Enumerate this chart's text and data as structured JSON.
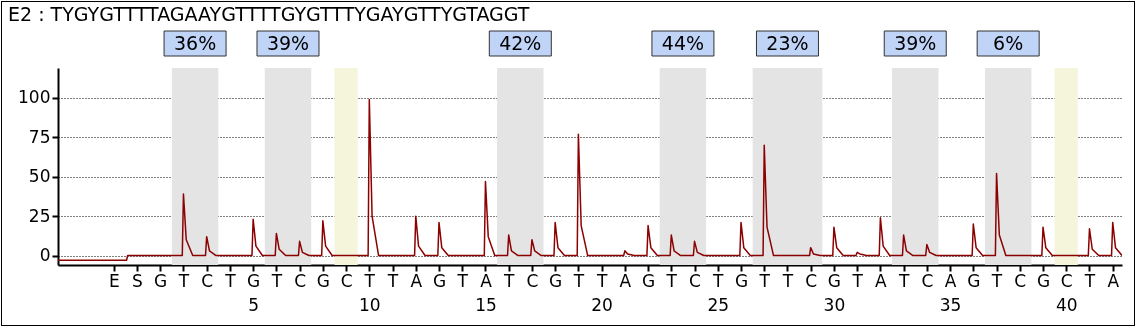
{
  "chart_data": {
    "type": "line",
    "title": "E2 : TYGYGTTTTAGAAYGTTTTGYGTTTYGAYGTTYGTAGGT",
    "series": [
      {
        "color": "#8b0000",
        "x": [
          -3.4,
          -0.45,
          -0.4,
          1.95,
          2,
          2.12,
          2.4,
          2.95,
          3,
          3.12,
          3.4,
          4.95,
          5,
          5.12,
          5.4,
          5.95,
          6,
          6.12,
          6.4,
          6.95,
          7,
          7.12,
          7.4,
          7.95,
          8,
          8.12,
          8.4,
          9.95,
          10,
          10.12,
          10.4,
          11.95,
          12,
          12.12,
          12.4,
          12.95,
          13,
          13.12,
          13.4,
          14.95,
          15,
          15.12,
          15.4,
          15.95,
          16,
          16.12,
          16.4,
          16.95,
          17,
          17.12,
          17.4,
          17.95,
          18,
          18.12,
          18.4,
          18.95,
          19,
          19.12,
          19.4,
          20.95,
          21,
          21.12,
          21.4,
          21.95,
          22,
          22.12,
          22.4,
          22.95,
          23,
          23.12,
          23.4,
          23.95,
          24,
          24.12,
          24.4,
          25.95,
          26,
          26.12,
          26.4,
          26.95,
          27,
          27.12,
          27.4,
          28.95,
          29,
          29.12,
          29.4,
          29.95,
          30,
          30.12,
          30.4,
          30.95,
          31,
          31.12,
          31.4,
          31.95,
          32,
          32.12,
          32.4,
          32.95,
          33,
          33.12,
          33.4,
          33.95,
          34,
          34.12,
          34.4,
          35.95,
          36,
          36.12,
          36.4,
          36.95,
          37,
          37.12,
          37.4,
          38.95,
          39,
          39.12,
          39.4,
          40.95,
          41,
          41.12,
          41.4,
          41.95,
          42,
          42.12,
          42.4
        ],
        "values": [
          -3,
          -3,
          0,
          0,
          39,
          10,
          0,
          0,
          12,
          3,
          0,
          0,
          23,
          6,
          0,
          0,
          14,
          4,
          0,
          0,
          9,
          2,
          0,
          0,
          22,
          6,
          0,
          0,
          99,
          25,
          0,
          0,
          25,
          6,
          0,
          0,
          21,
          5,
          0,
          0,
          47,
          12,
          0,
          0,
          13,
          3,
          0,
          0,
          10,
          3,
          0,
          0,
          21,
          5,
          0,
          0,
          77,
          19,
          0,
          0,
          3,
          1,
          0,
          0,
          19,
          5,
          0,
          0,
          13,
          3,
          0,
          0,
          9,
          2,
          0,
          0,
          21,
          5,
          0,
          0,
          70,
          18,
          0,
          0,
          5,
          1,
          0,
          0,
          18,
          5,
          0,
          0,
          2,
          1,
          0,
          0,
          24,
          6,
          0,
          0,
          13,
          3,
          0,
          0,
          7,
          2,
          0,
          0,
          20,
          5,
          0,
          0,
          52,
          13,
          0,
          0,
          18,
          5,
          0,
          0,
          17,
          4,
          0,
          0,
          21,
          5,
          0
        ]
      }
    ],
    "xlim": [
      -3.4,
      42.4
    ],
    "xticks": [
      5,
      10,
      15,
      20,
      25,
      30,
      35,
      40
    ],
    "annotations": [
      "E",
      "S",
      "G",
      "T",
      "C",
      "T",
      "G",
      "T",
      "C",
      "G",
      "C",
      "T",
      "T",
      "A",
      "G",
      "T",
      "A",
      "T",
      "C",
      "G",
      "T",
      "T",
      "A",
      "G",
      "T",
      "C",
      "T",
      "G",
      "T",
      "T",
      "C",
      "G",
      "T",
      "A",
      "T",
      "C",
      "A",
      "G",
      "T",
      "C",
      "G",
      "C",
      "T",
      "A"
    ],
    "ylim": [
      -6,
      119
    ],
    "yticks": [
      0,
      25,
      50,
      75,
      100
    ],
    "grid": "y",
    "bands": [
      {
        "axis": "x",
        "from": 1.5,
        "to": 3.5,
        "label": "36%",
        "color": "#e4e4e4"
      },
      {
        "axis": "x",
        "from": 5.5,
        "to": 7.5,
        "label": "39%",
        "color": "#e4e4e4"
      },
      {
        "axis": "x",
        "from": 8.5,
        "to": 9.5,
        "color": "#f5f5dc"
      },
      {
        "axis": "x",
        "from": 15.5,
        "to": 17.5,
        "label": "42%",
        "color": "#e4e4e4"
      },
      {
        "axis": "x",
        "from": 22.5,
        "to": 24.5,
        "label": "44%",
        "color": "#e4e4e4"
      },
      {
        "axis": "x",
        "from": 26.5,
        "to": 29.5,
        "label": "23%",
        "color": "#e4e4e4"
      },
      {
        "axis": "x",
        "from": 32.5,
        "to": 34.5,
        "label": "39%",
        "color": "#e4e4e4"
      },
      {
        "axis": "x",
        "from": 36.5,
        "to": 38.5,
        "label": "6%",
        "color": "#e4e4e4"
      },
      {
        "axis": "x",
        "from": 39.5,
        "to": 40.5,
        "color": "#f5f5dc"
      }
    ]
  }
}
